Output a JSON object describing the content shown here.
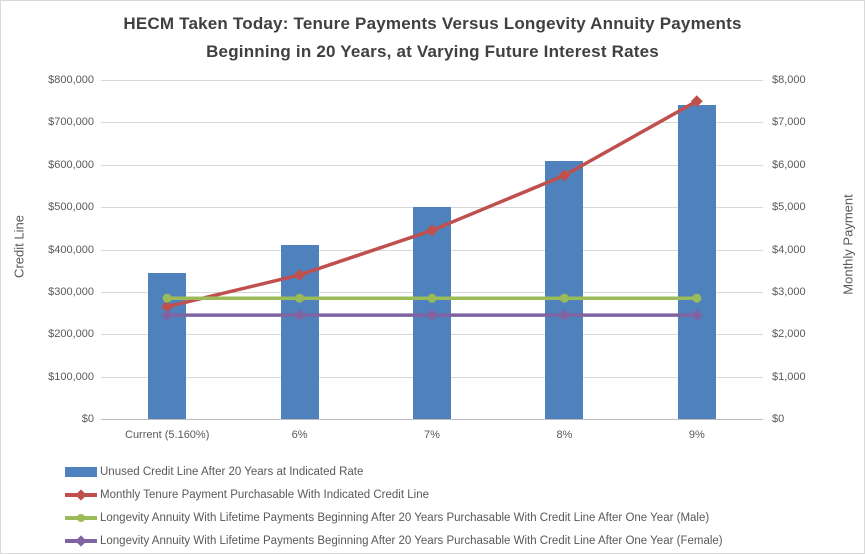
{
  "chart_data": {
    "type": "combo",
    "title": "HECM Taken Today: Tenure Payments Versus Longevity Annuity Payments Beginning in 20 Years, at Varying Future Interest Rates",
    "title_lines": [
      "HECM Taken Today: Tenure Payments Versus Longevity Annuity Payments",
      "Beginning in 20 Years, at Varying Future Interest Rates"
    ],
    "categories": [
      "Current (5.160%)",
      "6%",
      "7%",
      "8%",
      "9%"
    ],
    "left_axis": {
      "label": "Credit Line",
      "min": 0,
      "max": 800000,
      "step": 100000,
      "tick_labels": [
        "$0",
        "$100,000",
        "$200,000",
        "$300,000",
        "$400,000",
        "$500,000",
        "$600,000",
        "$700,000",
        "$800,000"
      ]
    },
    "right_axis": {
      "label": "Monthly Payment",
      "min": 0,
      "max": 8000,
      "step": 1000,
      "tick_labels": [
        "$0",
        "$1,000",
        "$2,000",
        "$3,000",
        "$4,000",
        "$5,000",
        "$6,000",
        "$7,000",
        "$8,000"
      ]
    },
    "grid": true,
    "legend_position": "bottom-left",
    "series": [
      {
        "name": "Unused Credit Line After 20 Years at Indicated Rate",
        "type": "bar",
        "axis": "left",
        "color": "#4F81BD",
        "values": [
          345000,
          410000,
          500000,
          610000,
          740000
        ]
      },
      {
        "name": "Monthly Tenure Payment Purchasable With Indicated Credit Line",
        "type": "line",
        "axis": "right",
        "color": "#C0504D",
        "marker": "diamond",
        "values": [
          2650,
          3400,
          4450,
          5750,
          7500
        ]
      },
      {
        "name": "Longevity Annuity With Lifetime Payments Beginning After 20 Years Purchasable With Credit Line After One Year (Male)",
        "type": "line",
        "axis": "right",
        "color": "#9BBB59",
        "marker": "circle",
        "values": [
          2850,
          2850,
          2850,
          2850,
          2850
        ]
      },
      {
        "name": "Longevity Annuity With Lifetime Payments Beginning After 20 Years Purchasable With Credit Line After One Year (Female)",
        "type": "line",
        "axis": "right",
        "color": "#8064A2",
        "marker": "diamond",
        "values": [
          2450,
          2450,
          2450,
          2450,
          2450
        ]
      }
    ]
  },
  "colors": {
    "bar_blue": "#4F81BD",
    "line_red": "#C0504D",
    "line_green": "#9BBB59",
    "line_purple": "#8064A2",
    "gridline": "#d9d9d9",
    "axis_text": "#595959",
    "title_text": "#404040"
  }
}
